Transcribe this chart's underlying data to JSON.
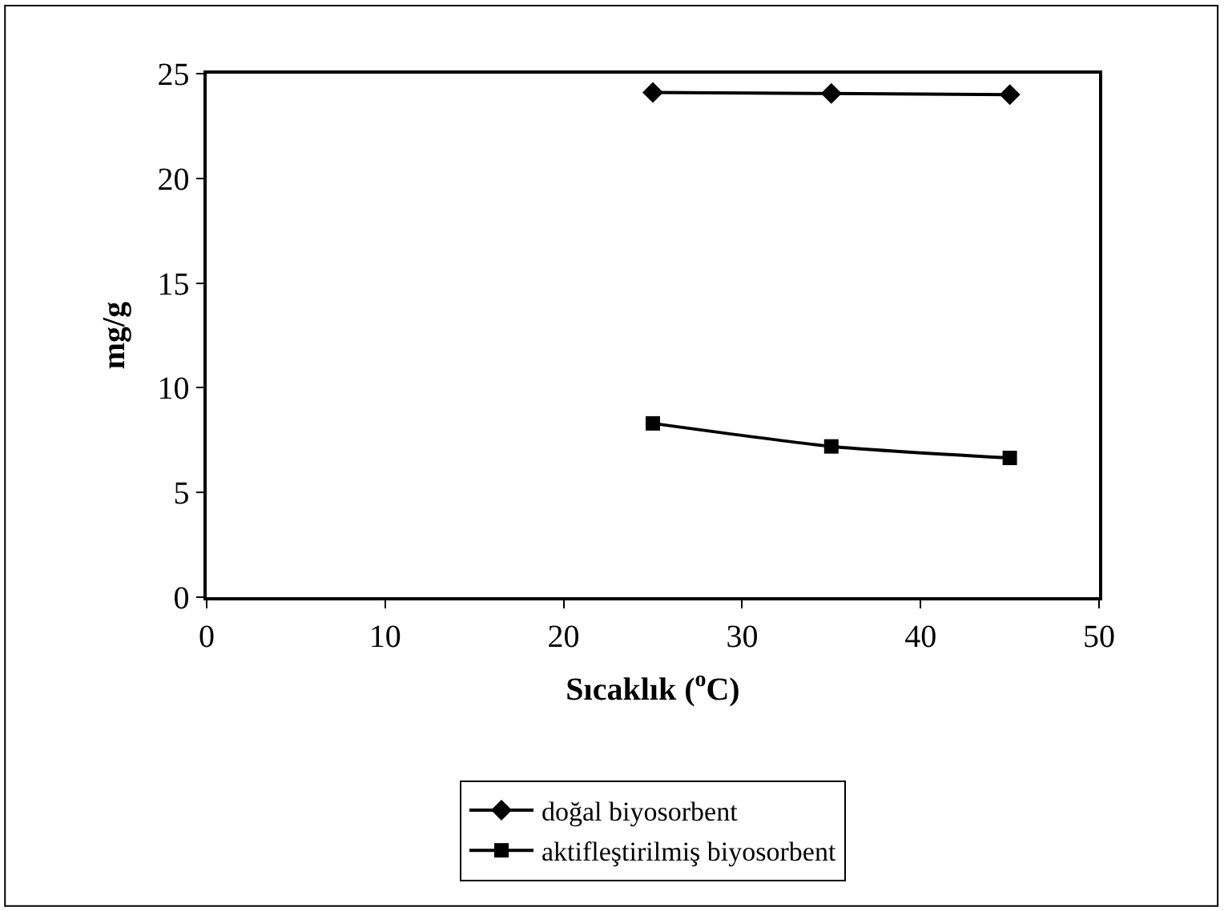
{
  "chart_data": {
    "type": "line",
    "xlabel": "Sıcaklık ($^{o}$C)",
    "ylabel": "mg/g",
    "x": [
      25,
      35,
      45
    ],
    "series": [
      {
        "name": "doğal biyosorbent",
        "color": "#000000",
        "marker": "diamond",
        "values": [
          24.1,
          24.05,
          24.0
        ]
      },
      {
        "name": "aktifleştirilmiş biyosorbent",
        "color": "#000000",
        "marker": "square",
        "values": [
          8.3,
          7.2,
          6.65
        ]
      }
    ],
    "xlim": [
      0,
      50
    ],
    "xticks": [
      0,
      10,
      20,
      30,
      40,
      50
    ],
    "ylim": [
      0,
      25
    ],
    "yticks": [
      0,
      5,
      10,
      15,
      20,
      25
    ],
    "legend": "bottom",
    "line_style": "solid"
  }
}
